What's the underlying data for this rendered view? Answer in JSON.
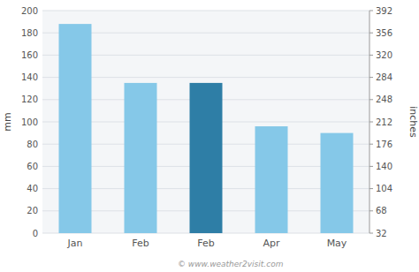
{
  "chart_data": {
    "type": "bar",
    "categories": [
      "Jan",
      "Feb",
      "Feb",
      "Apr",
      "May"
    ],
    "values": [
      188,
      135,
      135,
      96,
      90
    ],
    "colors": [
      "#85c8e8",
      "#85c8e8",
      "#2e7ea6",
      "#85c8e8",
      "#85c8e8"
    ],
    "ylabel": "mm",
    "y2label": "inches",
    "ylim": [
      0,
      200
    ],
    "yticks": [
      0,
      20,
      40,
      60,
      80,
      100,
      120,
      140,
      160,
      180,
      200
    ],
    "y2lim": [
      32,
      392
    ],
    "y2ticks": [
      32,
      68,
      104,
      140,
      176,
      212,
      248,
      284,
      320,
      356,
      392
    ],
    "grid": true,
    "annotations": [
      "© www.weather2visit.com"
    ]
  }
}
